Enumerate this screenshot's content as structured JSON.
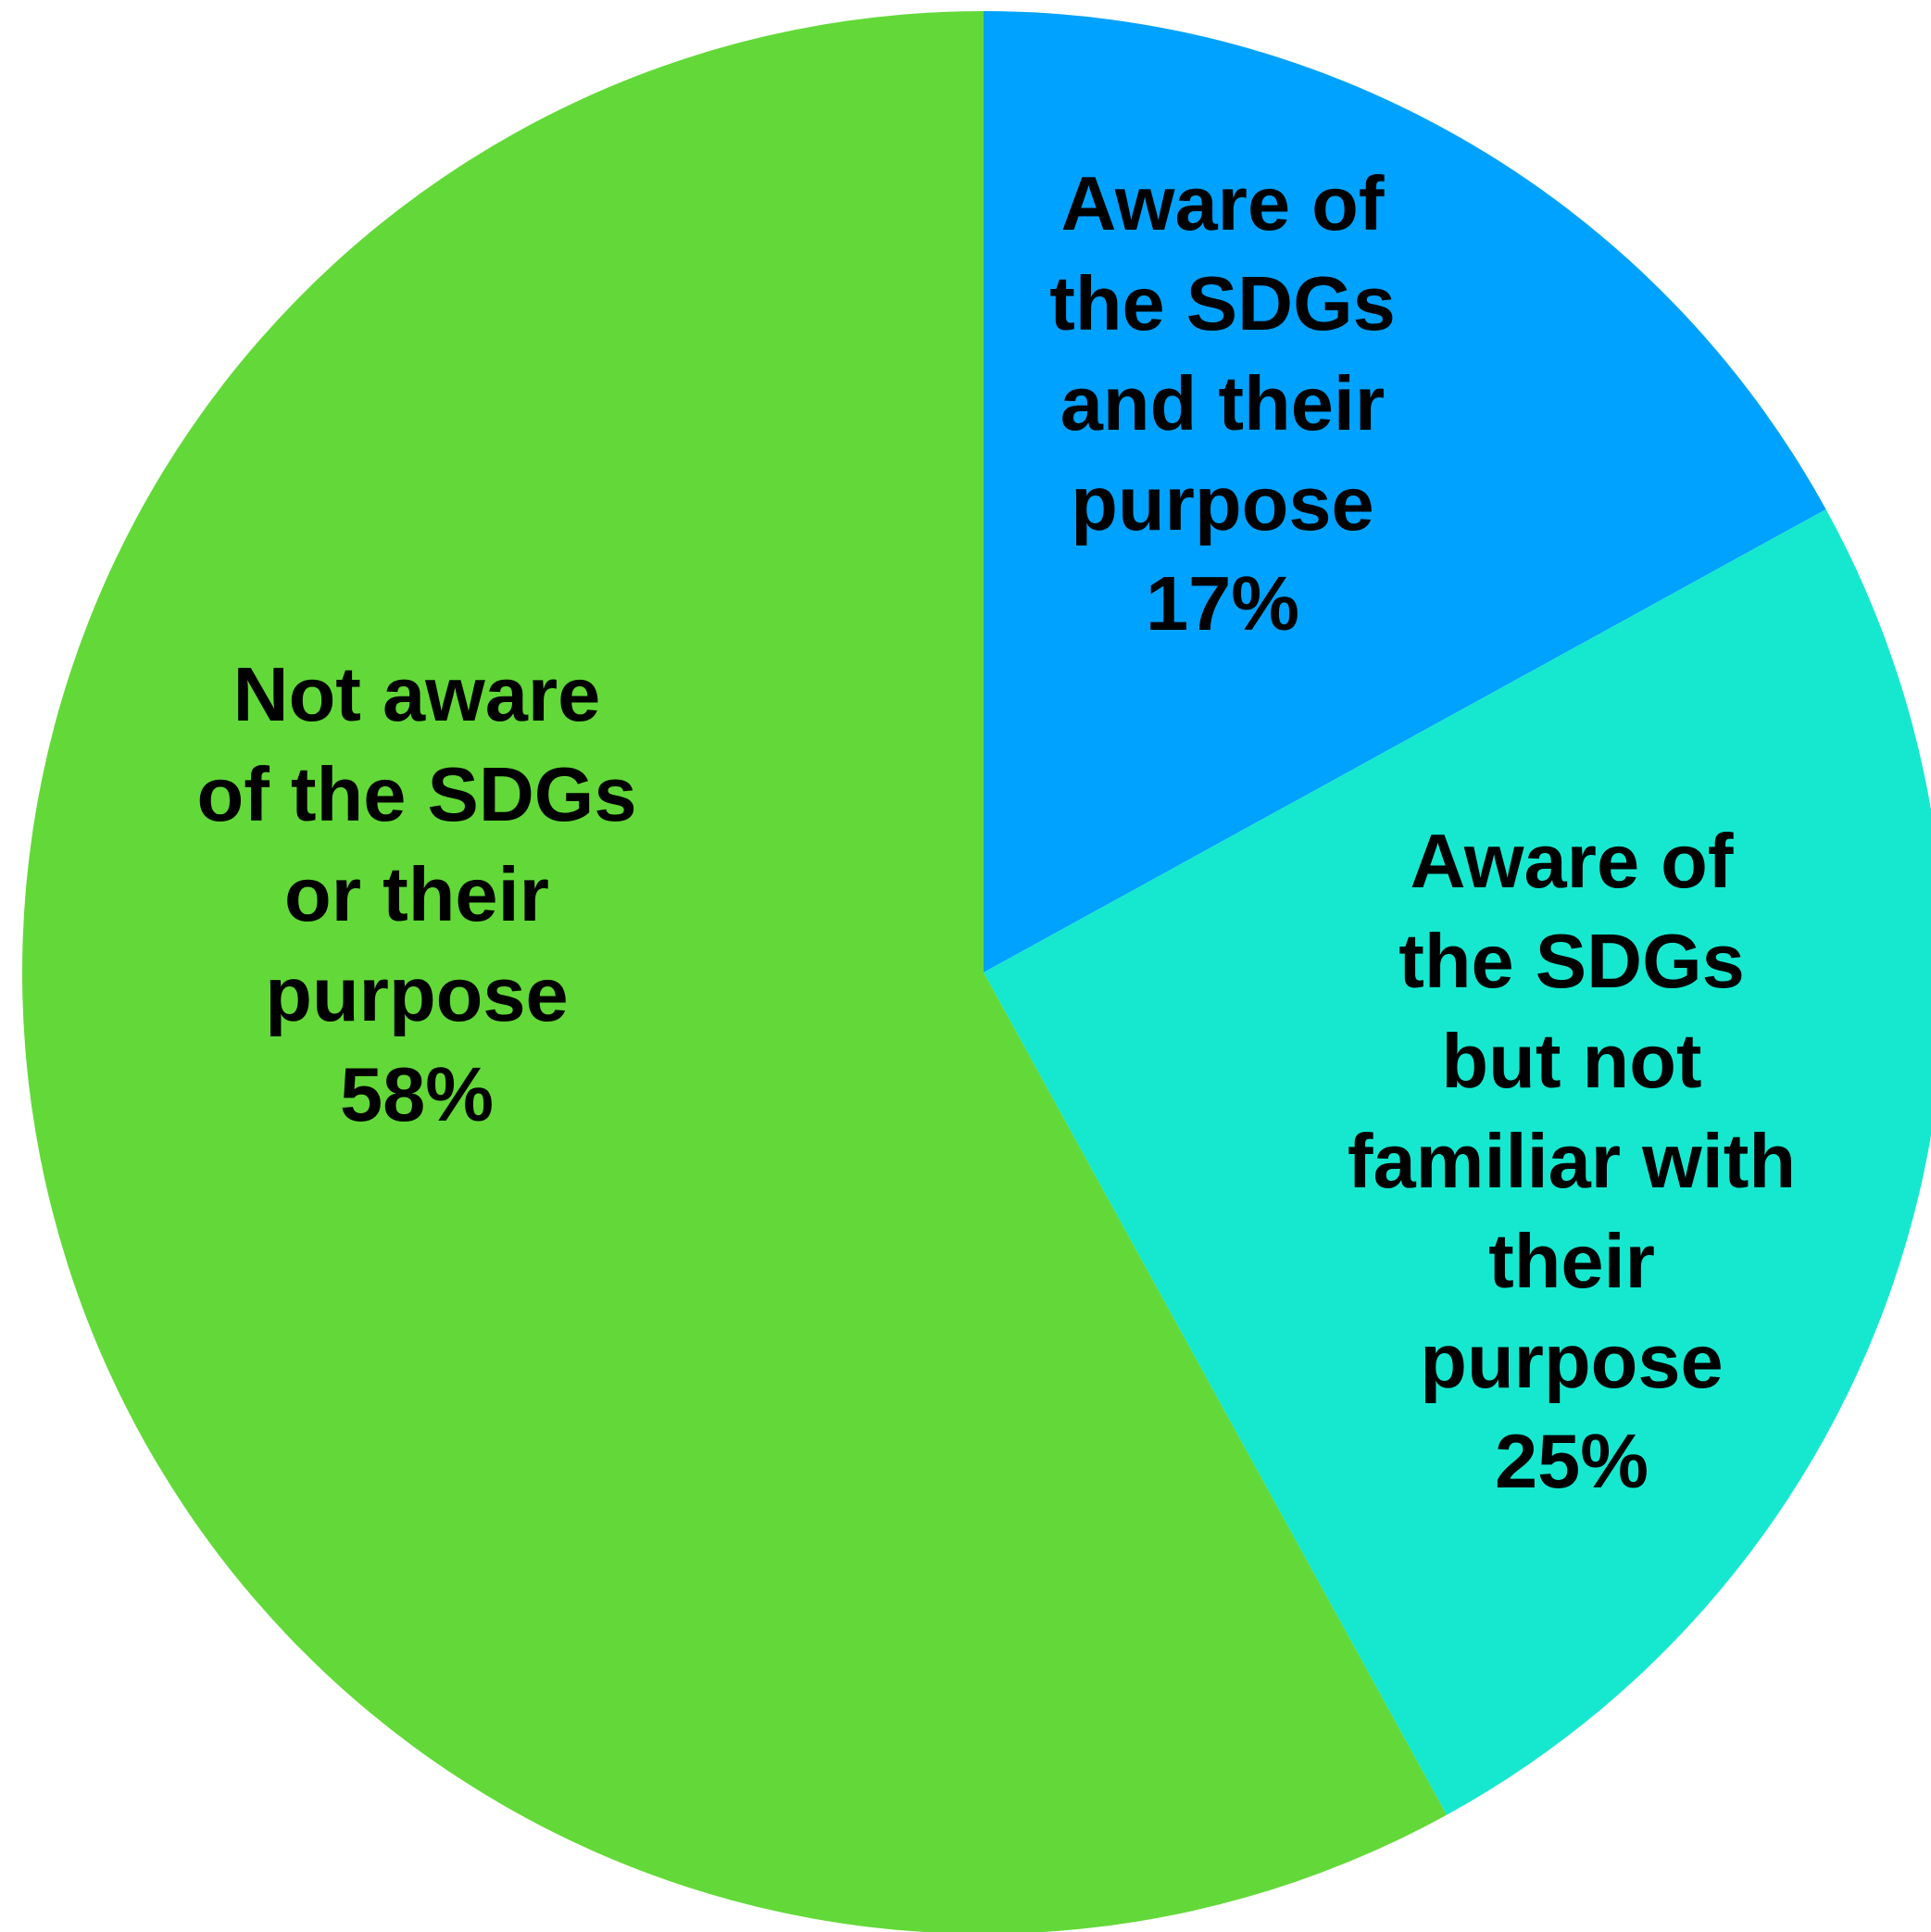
{
  "chart_data": {
    "type": "pie",
    "title": "",
    "start_angle_deg": 0,
    "direction": "clockwise",
    "slices": [
      {
        "name": "Aware of the SDGs and their purpose",
        "value": 17,
        "label_lines": [
          "Aware of",
          "the SDGs",
          "and their",
          "purpose",
          "17%"
        ],
        "color": "#00A2FF"
      },
      {
        "name": "Aware of the SDGs but not familiar with their purpose",
        "value": 25,
        "label_lines": [
          "Aware of",
          "the SDGs",
          "but not",
          "familiar with",
          "their",
          "purpose",
          "25%"
        ],
        "color": "#16E8D0"
      },
      {
        "name": "Not aware of the SDGs or their purpose",
        "value": 58,
        "label_lines": [
          "Not aware",
          "of the SDGs",
          "or their",
          "purpose",
          "58%"
        ],
        "color": "#62D938"
      }
    ]
  }
}
